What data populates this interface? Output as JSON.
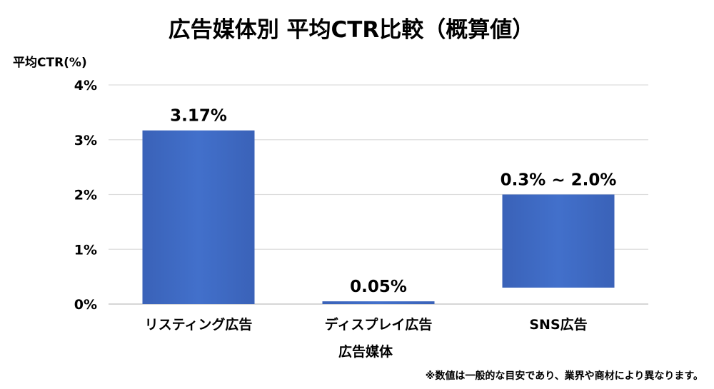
{
  "chart_data": {
    "type": "bar",
    "title": "広告媒体別 平均CTR比較（概算値）",
    "ylabel": "平均CTR(%)",
    "xlabel": "広告媒体",
    "ylim": [
      0,
      4
    ],
    "yticks": [
      {
        "value": 0,
        "label": "0%"
      },
      {
        "value": 1,
        "label": "1%"
      },
      {
        "value": 2,
        "label": "2%"
      },
      {
        "value": 3,
        "label": "3%"
      },
      {
        "value": 4,
        "label": "4%"
      }
    ],
    "grid": true,
    "categories": [
      "リスティング広告",
      "ディスプレイ広告",
      "SNS広告"
    ],
    "bars": [
      {
        "category": "リスティング広告",
        "low": 0,
        "high": 3.17,
        "label": "3.17%"
      },
      {
        "category": "ディスプレイ広告",
        "low": 0,
        "high": 0.05,
        "label": "0.05%"
      },
      {
        "category": "SNS広告",
        "low": 0.3,
        "high": 2.0,
        "label": "0.3% ~ 2.0%"
      }
    ],
    "bar_color": "#3e69c4",
    "note": "※数値は一般的な目安であり、業界や商材により異なります。"
  }
}
